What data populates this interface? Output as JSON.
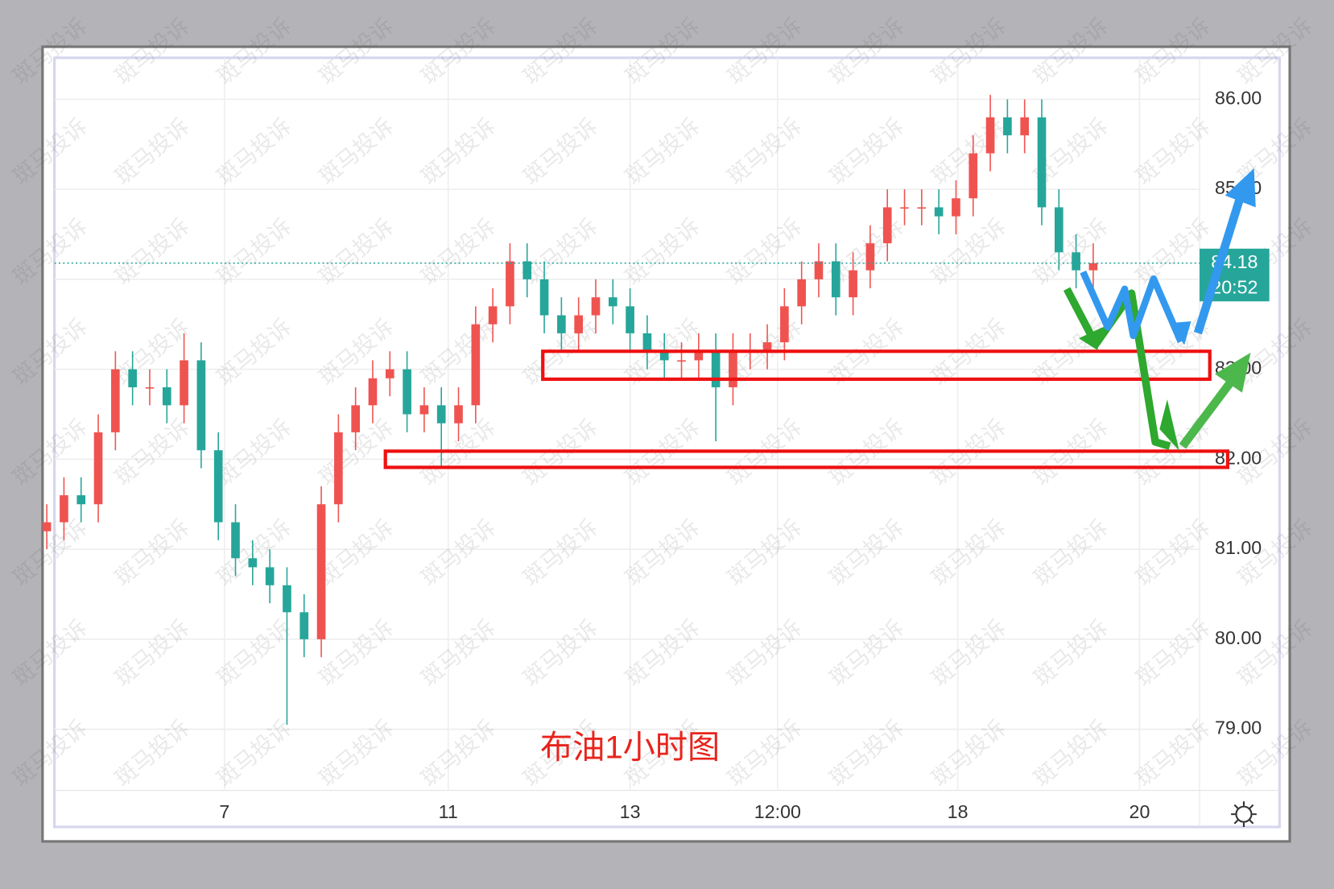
{
  "chart_data": {
    "type": "candlestick",
    "annotation": "布油1小时图",
    "watermark": "斑马投诉",
    "up_color": "#ef5350",
    "down_color": "#26a69a",
    "categories": [
      null,
      null,
      null,
      null,
      null,
      null,
      null,
      null,
      null,
      null,
      null,
      null,
      null,
      null,
      null,
      null,
      null,
      null,
      null,
      null,
      null,
      null,
      null,
      null,
      null,
      null,
      null,
      null,
      null,
      null,
      null,
      null,
      null,
      null,
      null,
      null,
      null,
      null,
      null,
      null,
      null,
      null,
      null,
      null,
      null,
      null,
      null,
      null,
      null,
      null,
      null,
      null,
      null,
      null,
      null,
      null,
      null,
      null,
      null,
      null,
      null,
      null
    ],
    "series": [
      {
        "open": [
          81.2,
          81.3,
          81.6,
          81.5,
          82.3,
          83.0,
          82.8,
          82.8,
          82.6,
          83.1,
          82.1,
          81.3,
          80.9,
          80.8,
          80.6,
          80.3,
          80.0,
          81.5,
          82.3,
          82.6,
          82.9,
          83.0,
          82.5,
          82.6,
          82.4,
          82.6,
          83.5,
          83.7,
          84.2,
          84.0,
          83.6,
          83.4,
          83.6,
          83.8,
          83.7,
          83.4,
          83.2,
          83.1,
          83.1,
          83.2,
          82.8,
          83.2,
          83.2,
          83.3,
          83.7,
          84.0,
          84.2,
          83.8,
          84.1,
          84.4,
          84.8,
          84.8,
          84.8,
          84.7,
          84.9,
          85.4,
          85.8,
          85.6,
          85.8,
          84.8,
          84.3,
          84.1
        ],
        "high": [
          81.5,
          81.8,
          81.8,
          82.5,
          83.2,
          83.2,
          83.0,
          83.0,
          83.4,
          83.3,
          82.3,
          81.5,
          81.1,
          81.0,
          80.8,
          80.5,
          81.7,
          82.5,
          82.8,
          83.1,
          83.2,
          83.2,
          82.8,
          82.8,
          82.8,
          83.7,
          83.9,
          84.4,
          84.4,
          84.2,
          83.8,
          83.8,
          84.0,
          84.0,
          83.9,
          83.6,
          83.4,
          83.3,
          83.4,
          83.4,
          83.4,
          83.4,
          83.5,
          83.9,
          84.2,
          84.4,
          84.4,
          84.3,
          84.6,
          85.0,
          85.0,
          85.0,
          85.0,
          85.1,
          85.6,
          86.05,
          86.0,
          86.0,
          86.0,
          85.0,
          84.5,
          84.4
        ],
        "low": [
          81.0,
          81.1,
          81.3,
          81.3,
          82.1,
          82.6,
          82.6,
          82.4,
          82.4,
          81.9,
          81.1,
          80.7,
          80.6,
          80.4,
          79.05,
          79.8,
          79.8,
          81.3,
          82.1,
          82.4,
          82.7,
          82.3,
          82.3,
          81.9,
          82.2,
          82.4,
          83.3,
          83.5,
          83.8,
          83.4,
          83.2,
          83.2,
          83.4,
          83.5,
          83.2,
          83.0,
          82.9,
          82.9,
          82.9,
          82.2,
          82.6,
          83.0,
          83.0,
          83.1,
          83.5,
          83.8,
          83.6,
          83.6,
          83.9,
          84.2,
          84.6,
          84.6,
          84.5,
          84.5,
          84.7,
          85.2,
          85.4,
          85.4,
          84.6,
          84.1,
          83.9,
          83.9
        ],
        "close": [
          81.3,
          81.6,
          81.5,
          82.3,
          83.0,
          82.8,
          82.8,
          82.6,
          83.1,
          82.1,
          81.3,
          80.9,
          80.8,
          80.6,
          80.3,
          80.0,
          81.5,
          82.3,
          82.6,
          82.9,
          83.0,
          82.5,
          82.6,
          82.4,
          82.6,
          83.5,
          83.7,
          84.2,
          84.0,
          83.6,
          83.4,
          83.6,
          83.8,
          83.7,
          83.4,
          83.2,
          83.1,
          83.1,
          83.2,
          82.8,
          83.2,
          83.2,
          83.3,
          83.7,
          84.0,
          84.2,
          83.8,
          84.1,
          84.4,
          84.8,
          84.8,
          84.8,
          84.7,
          84.9,
          85.4,
          85.8,
          85.6,
          85.8,
          84.8,
          84.3,
          84.1,
          84.18
        ]
      }
    ],
    "price_label": {
      "value": 84.18,
      "time": "20:52"
    },
    "zones": [
      {
        "low": 82.89,
        "high": 83.2
      },
      {
        "low": 81.91,
        "high": 82.09
      }
    ],
    "xlim": [
      0,
      67.2
    ],
    "xticks": [
      {
        "value": 10.36,
        "label": "7"
      },
      {
        "value": 23.4,
        "label": "11"
      },
      {
        "value": 34.0,
        "label": "13"
      },
      {
        "value": 42.6,
        "label": "12:00"
      },
      {
        "value": 53.1,
        "label": "18"
      },
      {
        "value": 63.7,
        "label": "20"
      }
    ],
    "ylim": [
      78.32,
      86.49
    ],
    "yticks": [
      {
        "value": 79,
        "label": "79.00"
      },
      {
        "value": 80,
        "label": "80.00"
      },
      {
        "value": 81,
        "label": "81.00"
      },
      {
        "value": 82,
        "label": "82.00"
      },
      {
        "value": 83,
        "label": "83.00"
      },
      {
        "value": 84,
        "label": "84.00"
      },
      {
        "value": 85,
        "label": "85.00"
      },
      {
        "value": 86,
        "label": "86.00"
      }
    ],
    "grid": true
  }
}
